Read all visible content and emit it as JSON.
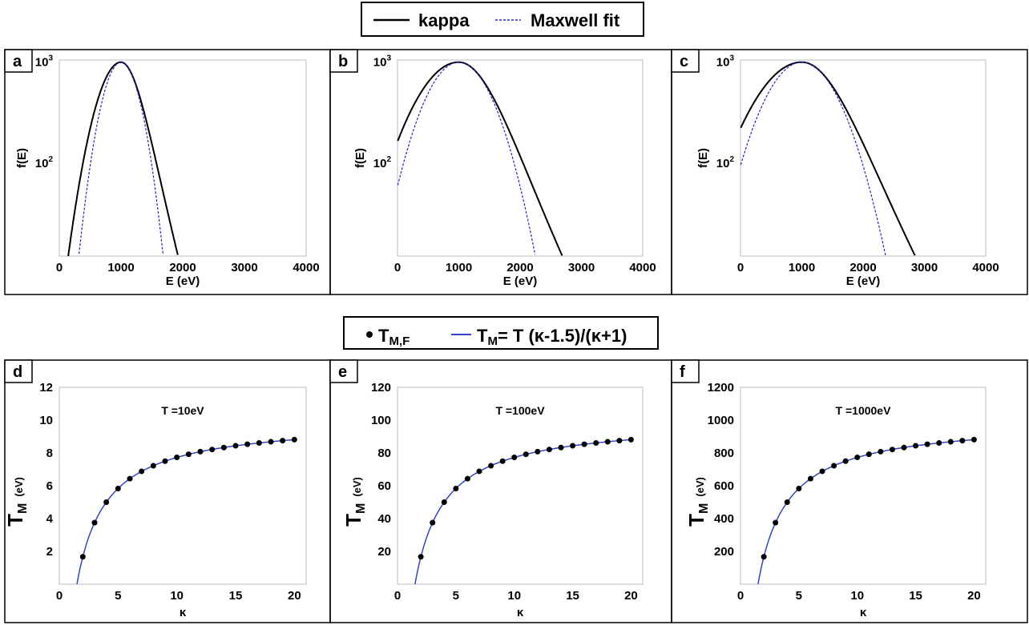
{
  "legend_top": {
    "kappa_label": "kappa",
    "maxwell_label": "Maxwell fit",
    "kappa_color": "#000000",
    "maxwell_color": "#2222cc"
  },
  "legend_bottom": {
    "points_main": "T",
    "points_sub": "M,F",
    "line_main": "T",
    "line_sub": "M",
    "line_formula": "= T (κ-1.5)/(κ+1)",
    "line_color": "#3344cc",
    "point_color": "#000000"
  },
  "chart_data": [
    {
      "id": "a",
      "type": "line",
      "label": "a",
      "xlabel": "E (eV)",
      "ylabel": "f(E)",
      "xlim": [
        0,
        4000
      ],
      "x_ticks": [
        0,
        1000,
        2000,
        3000,
        4000
      ],
      "x_tick_labels": [
        "0",
        "1000",
        "2000",
        "3000",
        "4000"
      ],
      "yscale": "log",
      "ylim": [
        12,
        1050
      ],
      "y_ticks": [
        {
          "base": "10",
          "exp": "2",
          "value": 100
        },
        {
          "base": "10",
          "exp": "3",
          "value": 1000
        }
      ],
      "kappa_curve": {
        "kappa": 20,
        "Tk": 1000,
        "peak_E": 1000,
        "peak": 1000
      },
      "maxwell_curve": {
        "peak_E": 1000,
        "peak": 1000,
        "sigma": 230
      }
    },
    {
      "id": "b",
      "type": "line",
      "label": "b",
      "xlabel": "E (eV)",
      "ylabel": "f(E)",
      "xlim": [
        0,
        4000
      ],
      "x_ticks": [
        0,
        1000,
        2000,
        3000,
        4000
      ],
      "x_tick_labels": [
        "0",
        "1000",
        "2000",
        "3000",
        "4000"
      ],
      "yscale": "log",
      "ylim": [
        12,
        1050
      ],
      "y_ticks": [
        {
          "base": "10",
          "exp": "2",
          "value": 100
        },
        {
          "base": "10",
          "exp": "3",
          "value": 1000
        }
      ],
      "kappa_curve": {
        "kappa": 20,
        "Tk": 1000,
        "peak_E": 1000,
        "peak": 1000
      },
      "maxwell_curve": {
        "peak_E": 1000,
        "peak": 1000,
        "sigma": 420
      }
    },
    {
      "id": "c",
      "type": "line",
      "label": "c",
      "xlabel": "E (eV)",
      "ylabel": "f(E)",
      "xlim": [
        0,
        4000
      ],
      "x_ticks": [
        0,
        1000,
        2000,
        3000,
        4000
      ],
      "x_tick_labels": [
        "0",
        "1000",
        "2000",
        "3000",
        "4000"
      ],
      "yscale": "log",
      "ylim": [
        12,
        1050
      ],
      "y_ticks": [
        {
          "base": "10",
          "exp": "2",
          "value": 100
        },
        {
          "base": "10",
          "exp": "3",
          "value": 1000
        }
      ],
      "kappa_curve": {
        "kappa": 20,
        "Tk": 1000,
        "peak_E": 1000,
        "peak": 1000
      },
      "maxwell_curve": {
        "peak_E": 1000,
        "peak": 1000,
        "sigma": 460
      }
    },
    {
      "id": "d",
      "type": "line",
      "label": "d",
      "xlabel": "κ",
      "ylabel_main": "T",
      "ylabel_sub": "M",
      "ylabel_unit": "(eV)",
      "annotation": "T =10eV",
      "T": 10,
      "xlim": [
        0,
        21
      ],
      "x_ticks": [
        0,
        5,
        10,
        15,
        20
      ],
      "x_tick_labels": [
        "0",
        "5",
        "10",
        "15",
        "20"
      ],
      "ylim": [
        0,
        12
      ],
      "y_ticks": [
        2,
        4,
        6,
        8,
        10,
        12
      ],
      "y_tick_labels": [
        "2",
        "4",
        "6",
        "8",
        "10",
        "12"
      ],
      "points": {
        "x": [
          2,
          3,
          4,
          5,
          6,
          7,
          8,
          9,
          10,
          11,
          12,
          13,
          14,
          15,
          16,
          17,
          18,
          19,
          20
        ],
        "y": [
          1.67,
          3.75,
          5.0,
          5.83,
          6.43,
          6.88,
          7.22,
          7.5,
          7.73,
          7.92,
          8.08,
          8.21,
          8.33,
          8.44,
          8.53,
          8.61,
          8.68,
          8.75,
          8.81
        ]
      }
    },
    {
      "id": "e",
      "type": "line",
      "label": "e",
      "xlabel": "κ",
      "ylabel_main": "T",
      "ylabel_sub": "M",
      "ylabel_unit": "(eV)",
      "annotation": "T =100eV",
      "T": 100,
      "xlim": [
        0,
        21
      ],
      "x_ticks": [
        0,
        5,
        10,
        15,
        20
      ],
      "x_tick_labels": [
        "0",
        "5",
        "10",
        "15",
        "20"
      ],
      "ylim": [
        0,
        120
      ],
      "y_ticks": [
        20,
        40,
        60,
        80,
        100,
        120
      ],
      "y_tick_labels": [
        "20",
        "40",
        "60",
        "80",
        "100",
        "120"
      ],
      "points": {
        "x": [
          2,
          3,
          4,
          5,
          6,
          7,
          8,
          9,
          10,
          11,
          12,
          13,
          14,
          15,
          16,
          17,
          18,
          19,
          20
        ],
        "y": [
          16.7,
          37.5,
          50.0,
          58.3,
          64.3,
          68.8,
          72.2,
          75.0,
          77.3,
          79.2,
          80.8,
          82.1,
          83.3,
          84.4,
          85.3,
          86.1,
          86.8,
          87.5,
          88.1
        ]
      }
    },
    {
      "id": "f",
      "type": "line",
      "label": "f",
      "xlabel": "κ",
      "ylabel_main": "T",
      "ylabel_sub": "M",
      "ylabel_unit": "(eV)",
      "annotation": "T =1000eV",
      "T": 1000,
      "xlim": [
        0,
        21
      ],
      "x_ticks": [
        0,
        5,
        10,
        15,
        20
      ],
      "x_tick_labels": [
        "0",
        "5",
        "10",
        "15",
        "20"
      ],
      "ylim": [
        0,
        1200
      ],
      "y_ticks": [
        200,
        400,
        600,
        800,
        1000,
        1200
      ],
      "y_tick_labels": [
        "200",
        "400",
        "600",
        "800",
        "1000",
        "1200"
      ],
      "points": {
        "x": [
          2,
          3,
          4,
          5,
          6,
          7,
          8,
          9,
          10,
          11,
          12,
          13,
          14,
          15,
          16,
          17,
          18,
          19,
          20
        ],
        "y": [
          167,
          375,
          500,
          583,
          643,
          688,
          722,
          750,
          773,
          792,
          808,
          821,
          833,
          844,
          853,
          861,
          868,
          875,
          881
        ]
      }
    }
  ]
}
